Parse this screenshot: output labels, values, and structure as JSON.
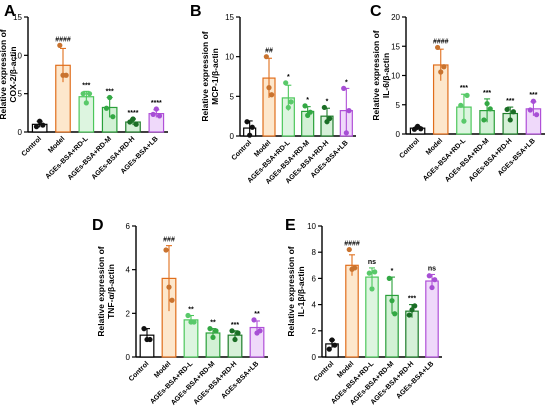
{
  "chart_data": [
    {
      "panel": "A",
      "type": "bar",
      "ylabel": [
        "Relative expression of",
        "COX-2/β-actin"
      ],
      "ylim": [
        0,
        15
      ],
      "yticks": [
        0,
        5,
        10,
        15
      ],
      "categories": [
        "Control",
        "Model",
        "AGEs-BSA+RD-L",
        "AGEs-BSA+RD-M",
        "AGEs-BSA+RD-H",
        "AGEs-BSA+LB"
      ],
      "values": [
        1.0,
        8.7,
        4.6,
        3.2,
        1.3,
        2.4
      ],
      "points": [
        [
          0.7,
          1.4,
          0.9
        ],
        [
          11.3,
          7.4,
          7.4
        ],
        [
          5.0,
          3.8,
          5.0
        ],
        [
          3.1,
          4.5,
          2.0
        ],
        [
          1.3,
          1.7,
          1.0
        ],
        [
          2.3,
          3.0,
          2.1
        ]
      ],
      "errors": [
        0.4,
        2.2,
        0.7,
        1.3,
        0.4,
        0.5
      ],
      "significance": [
        "",
        "####",
        "***",
        "***",
        "****",
        "****"
      ]
    },
    {
      "panel": "B",
      "type": "bar",
      "ylabel": [
        "Relative expression of",
        "MCP-1/β-actin"
      ],
      "ylim": [
        0,
        15
      ],
      "yticks": [
        0,
        5,
        10,
        15
      ],
      "categories": [
        "Control",
        "Model",
        "AGEs-BSA+RD-L",
        "AGEs-BSA+RD-M",
        "AGEs-BSA+RD-H",
        "AGEs-BSA+LB"
      ],
      "values": [
        1.0,
        7.3,
        4.8,
        3.1,
        2.5,
        3.2
      ],
      "points": [
        [
          1.8,
          0.1,
          1.1
        ],
        [
          10.0,
          6.1,
          5.2
        ],
        [
          6.7,
          3.6,
          4.3
        ],
        [
          3.8,
          2.6,
          3.0
        ],
        [
          3.6,
          1.8,
          2.2
        ],
        [
          6.0,
          0.4,
          3.2
        ]
      ],
      "errors": [
        0.9,
        2.5,
        1.6,
        0.6,
        1.0,
        2.8
      ],
      "significance": [
        "",
        "##",
        "*",
        "*",
        "*",
        "*"
      ]
    },
    {
      "panel": "C",
      "type": "bar",
      "ylabel": [
        "Relative expression of",
        "IL-6/β-actin"
      ],
      "ylim": [
        0,
        20
      ],
      "yticks": [
        0,
        5,
        10,
        15,
        20
      ],
      "categories": [
        "Control",
        "Model",
        "AGEs-BSA+RD-L",
        "AGEs-BSA+RD-M",
        "AGEs-BSA+RD-H",
        "AGEs-BSA+LB"
      ],
      "values": [
        1.0,
        11.8,
        4.6,
        4.0,
        3.5,
        4.3
      ],
      "points": [
        [
          0.8,
          1.3,
          0.9
        ],
        [
          14.8,
          10.6,
          11.5
        ],
        [
          4.9,
          2.2,
          6.6
        ],
        [
          2.4,
          5.2,
          4.3
        ],
        [
          4.2,
          2.4,
          3.8
        ],
        [
          4.1,
          5.6,
          3.3
        ]
      ],
      "errors": [
        0.3,
        2.7,
        2.2,
        2.0,
        1.1,
        1.2
      ],
      "significance": [
        "",
        "####",
        "***",
        "***",
        "***",
        "***"
      ]
    },
    {
      "panel": "D",
      "type": "bar",
      "ylabel": [
        "Relative expression of",
        "TNF-α/β-actin"
      ],
      "ylim": [
        0,
        6
      ],
      "yticks": [
        0,
        2,
        4,
        6
      ],
      "categories": [
        "Control",
        "Model",
        "AGEs-BSA+RD-L",
        "AGEs-BSA+RD-M",
        "AGEs-BSA+RD-H",
        "AGEs-BSA+LB"
      ],
      "values": [
        1.0,
        3.6,
        1.7,
        1.1,
        1.0,
        1.35
      ],
      "points": [
        [
          1.3,
          0.8,
          0.8
        ],
        [
          4.9,
          3.2,
          2.6
        ],
        [
          1.9,
          1.6,
          1.6
        ],
        [
          1.3,
          0.9,
          1.2
        ],
        [
          1.2,
          0.8,
          1.1
        ],
        [
          1.7,
          1.1,
          1.2
        ]
      ],
      "errors": [
        0.3,
        1.5,
        0.2,
        0.2,
        0.2,
        0.3
      ],
      "significance": [
        "",
        "###",
        "**",
        "**",
        "***",
        "**"
      ]
    },
    {
      "panel": "E",
      "type": "bar",
      "ylabel": [
        "Relative expression of",
        "IL-1β/β-actin"
      ],
      "ylim": [
        0,
        10
      ],
      "yticks": [
        0,
        2,
        4,
        6,
        8,
        10
      ],
      "categories": [
        "Control",
        "Model",
        "AGEs-BSA+RD-L",
        "AGEs-BSA+RD-M",
        "AGEs-BSA+RD-H",
        "AGEs-BSA+LB"
      ],
      "values": [
        1.0,
        7.0,
        6.1,
        4.7,
        3.5,
        5.8
      ],
      "points": [
        [
          0.6,
          1.3,
          0.9
        ],
        [
          8.2,
          6.7,
          6.8
        ],
        [
          6.4,
          5.2,
          6.5
        ],
        [
          6.0,
          4.3,
          3.3
        ],
        [
          3.2,
          3.6,
          3.9
        ],
        [
          6.2,
          5.3,
          5.9
        ]
      ],
      "errors": [
        0.3,
        0.8,
        0.7,
        1.4,
        0.5,
        0.5
      ],
      "significance": [
        "",
        "####",
        "ns",
        "*",
        "***",
        "ns"
      ]
    }
  ],
  "colors": {
    "edges": [
      "#000000",
      "#e06e1c",
      "#4cc75b",
      "#2aa03a",
      "#1f7d2b",
      "#b050d8"
    ],
    "fills": [
      "#ffffff",
      "#fde7cc",
      "#ddf5e0",
      "#d2f1d5",
      "#d6f0d8",
      "#efd9fa"
    ],
    "dots": [
      "#111111",
      "#c9732f",
      "#59c96a",
      "#33a844",
      "#1b6e26",
      "#a74fd5"
    ],
    "significance": [
      "#000000",
      "#000000",
      "#000000",
      "#000000",
      "#000000",
      "#000000"
    ]
  }
}
